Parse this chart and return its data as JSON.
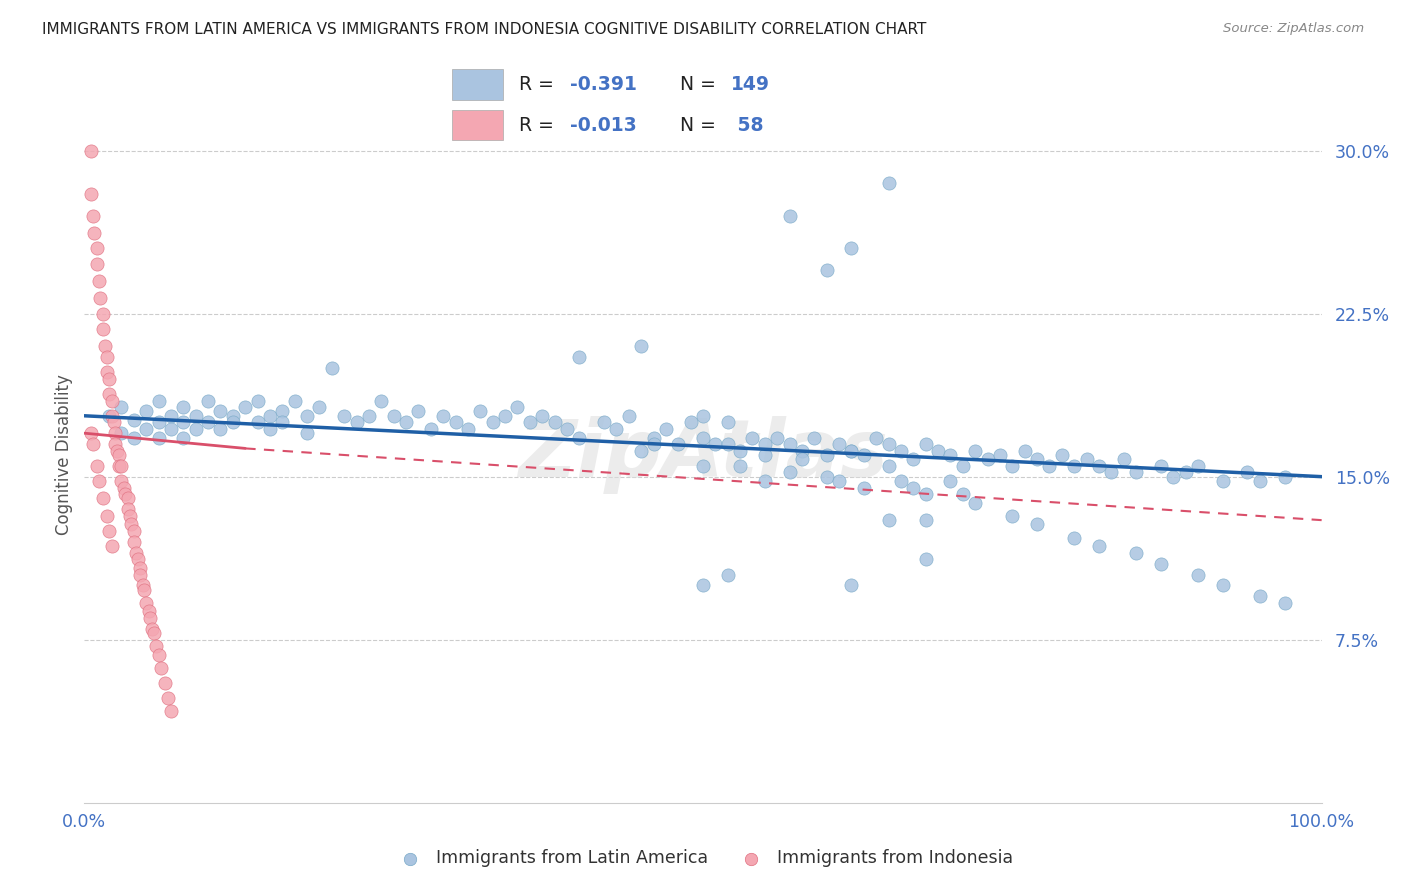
{
  "title": "IMMIGRANTS FROM LATIN AMERICA VS IMMIGRANTS FROM INDONESIA COGNITIVE DISABILITY CORRELATION CHART",
  "source": "Source: ZipAtlas.com",
  "ylabel": "Cognitive Disability",
  "xlim": [
    0.0,
    1.0
  ],
  "ylim": [
    0.0,
    0.32
  ],
  "yticks": [
    0.075,
    0.15,
    0.225,
    0.3
  ],
  "ytick_labels": [
    "7.5%",
    "15.0%",
    "22.5%",
    "30.0%"
  ],
  "xticks": [
    0.0,
    0.25,
    0.5,
    0.75,
    1.0
  ],
  "xtick_labels": [
    "0.0%",
    "",
    "",
    "",
    "100.0%"
  ],
  "legend1_label": "Immigrants from Latin America",
  "legend2_label": "Immigrants from Indonesia",
  "R1": -0.391,
  "N1": 149,
  "R2": -0.013,
  "N2": 58,
  "color1": "#aac4e0",
  "color2": "#f4a7b2",
  "trend1_color": "#1f5fa6",
  "trend2_color": "#d94f6a",
  "background_color": "#ffffff",
  "title_color": "#222222",
  "axis_color": "#4472c4",
  "watermark": "ZipAtlas",
  "scatter1_x": [
    0.02,
    0.03,
    0.03,
    0.04,
    0.04,
    0.05,
    0.05,
    0.06,
    0.06,
    0.06,
    0.07,
    0.07,
    0.08,
    0.08,
    0.08,
    0.09,
    0.09,
    0.1,
    0.1,
    0.11,
    0.11,
    0.12,
    0.12,
    0.13,
    0.14,
    0.14,
    0.15,
    0.15,
    0.16,
    0.16,
    0.17,
    0.18,
    0.18,
    0.19,
    0.2,
    0.21,
    0.22,
    0.23,
    0.24,
    0.25,
    0.26,
    0.27,
    0.28,
    0.29,
    0.3,
    0.31,
    0.32,
    0.33,
    0.34,
    0.35,
    0.36,
    0.37,
    0.38,
    0.39,
    0.4,
    0.42,
    0.43,
    0.44,
    0.45,
    0.46,
    0.47,
    0.48,
    0.49,
    0.5,
    0.5,
    0.51,
    0.52,
    0.53,
    0.54,
    0.55,
    0.55,
    0.56,
    0.57,
    0.58,
    0.59,
    0.6,
    0.61,
    0.62,
    0.63,
    0.64,
    0.65,
    0.66,
    0.67,
    0.68,
    0.69,
    0.7,
    0.71,
    0.72,
    0.73,
    0.74,
    0.75,
    0.76,
    0.77,
    0.78,
    0.79,
    0.8,
    0.81,
    0.82,
    0.83,
    0.84,
    0.85,
    0.87,
    0.88,
    0.89,
    0.9,
    0.92,
    0.94,
    0.95,
    0.97,
    0.4,
    0.45,
    0.46,
    0.5,
    0.52,
    0.53,
    0.55,
    0.57,
    0.58,
    0.6,
    0.61,
    0.62,
    0.63,
    0.65,
    0.66,
    0.67,
    0.68,
    0.7,
    0.71,
    0.72,
    0.75,
    0.77,
    0.8,
    0.82,
    0.85,
    0.87,
    0.9,
    0.92,
    0.95,
    0.97,
    0.57,
    0.6,
    0.62,
    0.65,
    0.68,
    0.62,
    0.65,
    0.68,
    0.5,
    0.52
  ],
  "scatter1_y": [
    0.178,
    0.182,
    0.17,
    0.176,
    0.168,
    0.18,
    0.172,
    0.175,
    0.185,
    0.168,
    0.178,
    0.172,
    0.175,
    0.182,
    0.168,
    0.178,
    0.172,
    0.185,
    0.175,
    0.18,
    0.172,
    0.178,
    0.175,
    0.182,
    0.185,
    0.175,
    0.178,
    0.172,
    0.18,
    0.175,
    0.185,
    0.178,
    0.17,
    0.182,
    0.2,
    0.178,
    0.175,
    0.178,
    0.185,
    0.178,
    0.175,
    0.18,
    0.172,
    0.178,
    0.175,
    0.172,
    0.18,
    0.175,
    0.178,
    0.182,
    0.175,
    0.178,
    0.175,
    0.172,
    0.205,
    0.175,
    0.172,
    0.178,
    0.162,
    0.168,
    0.172,
    0.165,
    0.175,
    0.168,
    0.178,
    0.165,
    0.175,
    0.162,
    0.168,
    0.165,
    0.16,
    0.168,
    0.165,
    0.162,
    0.168,
    0.16,
    0.165,
    0.162,
    0.16,
    0.168,
    0.165,
    0.162,
    0.158,
    0.165,
    0.162,
    0.16,
    0.155,
    0.162,
    0.158,
    0.16,
    0.155,
    0.162,
    0.158,
    0.155,
    0.16,
    0.155,
    0.158,
    0.155,
    0.152,
    0.158,
    0.152,
    0.155,
    0.15,
    0.152,
    0.155,
    0.148,
    0.152,
    0.148,
    0.15,
    0.168,
    0.21,
    0.165,
    0.155,
    0.165,
    0.155,
    0.148,
    0.152,
    0.158,
    0.15,
    0.148,
    0.162,
    0.145,
    0.155,
    0.148,
    0.145,
    0.142,
    0.148,
    0.142,
    0.138,
    0.132,
    0.128,
    0.122,
    0.118,
    0.115,
    0.11,
    0.105,
    0.1,
    0.095,
    0.092,
    0.27,
    0.245,
    0.255,
    0.285,
    0.13,
    0.1,
    0.13,
    0.112,
    0.1,
    0.105
  ],
  "scatter2_x": [
    0.005,
    0.005,
    0.007,
    0.008,
    0.01,
    0.01,
    0.012,
    0.013,
    0.015,
    0.015,
    0.017,
    0.018,
    0.018,
    0.02,
    0.02,
    0.022,
    0.022,
    0.024,
    0.025,
    0.025,
    0.026,
    0.028,
    0.028,
    0.03,
    0.03,
    0.032,
    0.033,
    0.035,
    0.035,
    0.037,
    0.038,
    0.04,
    0.04,
    0.042,
    0.043,
    0.045,
    0.045,
    0.047,
    0.048,
    0.05,
    0.052,
    0.053,
    0.055,
    0.056,
    0.058,
    0.06,
    0.062,
    0.065,
    0.068,
    0.07,
    0.005,
    0.007,
    0.01,
    0.012,
    0.015,
    0.018,
    0.02,
    0.022
  ],
  "scatter2_y": [
    0.3,
    0.28,
    0.27,
    0.262,
    0.255,
    0.248,
    0.24,
    0.232,
    0.225,
    0.218,
    0.21,
    0.205,
    0.198,
    0.195,
    0.188,
    0.185,
    0.178,
    0.175,
    0.17,
    0.165,
    0.162,
    0.16,
    0.155,
    0.155,
    0.148,
    0.145,
    0.142,
    0.14,
    0.135,
    0.132,
    0.128,
    0.125,
    0.12,
    0.115,
    0.112,
    0.108,
    0.105,
    0.1,
    0.098,
    0.092,
    0.088,
    0.085,
    0.08,
    0.078,
    0.072,
    0.068,
    0.062,
    0.055,
    0.048,
    0.042,
    0.17,
    0.165,
    0.155,
    0.148,
    0.14,
    0.132,
    0.125,
    0.118
  ],
  "trend1_x_start": 0.0,
  "trend1_y_start": 0.178,
  "trend1_x_end": 1.0,
  "trend1_y_end": 0.15,
  "trend2_x_solid_start": 0.0,
  "trend2_y_solid_start": 0.17,
  "trend2_x_solid_end": 0.13,
  "trend2_y_solid_end": 0.163,
  "trend2_x_dash_start": 0.13,
  "trend2_y_dash_start": 0.163,
  "trend2_x_dash_end": 1.0,
  "trend2_y_dash_end": 0.13
}
